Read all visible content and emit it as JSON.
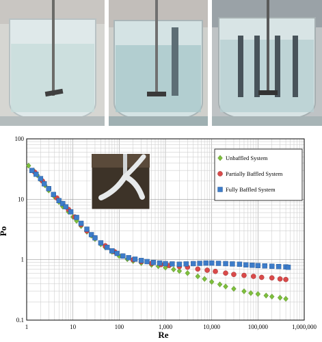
{
  "photos": [
    {
      "name": "unbaffled-tank-photo"
    },
    {
      "name": "partially-baffled-tank-photo"
    },
    {
      "name": "fully-baffled-tank-photo"
    }
  ],
  "inset_photo": {
    "name": "impeller-photo"
  },
  "chart_data": {
    "type": "scatter",
    "xlabel": "Re",
    "ylabel": "Po",
    "xscale": "log",
    "yscale": "log",
    "xlim": [
      1,
      1000000
    ],
    "ylim": [
      0.1,
      100
    ],
    "x_tick_labels": [
      "1",
      "10",
      "100",
      "1,000",
      "10,000",
      "100,000",
      "1,000,000"
    ],
    "y_tick_labels": [
      "0.1",
      "1",
      "10",
      "100"
    ],
    "grid": true,
    "legend_position": "top-right",
    "series": [
      {
        "name": "Unbaffled System",
        "color": "#7dbe3c",
        "marker": "diamond",
        "points": [
          [
            1.1,
            36
          ],
          [
            1.4,
            30
          ],
          [
            1.7,
            25
          ],
          [
            2,
            21
          ],
          [
            2.5,
            17
          ],
          [
            3,
            14
          ],
          [
            4,
            11
          ],
          [
            5,
            9
          ],
          [
            6,
            7.6
          ],
          [
            8,
            6.2
          ],
          [
            10,
            5.1
          ],
          [
            12,
            4.4
          ],
          [
            15,
            3.6
          ],
          [
            20,
            2.9
          ],
          [
            25,
            2.5
          ],
          [
            30,
            2.2
          ],
          [
            40,
            1.8
          ],
          [
            50,
            1.6
          ],
          [
            70,
            1.35
          ],
          [
            100,
            1.15
          ],
          [
            150,
            1.02
          ],
          [
            200,
            0.95
          ],
          [
            300,
            0.88
          ],
          [
            500,
            0.82
          ],
          [
            700,
            0.78
          ],
          [
            1000,
            0.74
          ],
          [
            1500,
            0.69
          ],
          [
            2000,
            0.65
          ],
          [
            3000,
            0.6
          ],
          [
            5000,
            0.53
          ],
          [
            7000,
            0.48
          ],
          [
            10000,
            0.43
          ],
          [
            15000,
            0.39
          ],
          [
            20000,
            0.36
          ],
          [
            30000,
            0.33
          ],
          [
            50000,
            0.3
          ],
          [
            70000,
            0.28
          ],
          [
            100000,
            0.27
          ],
          [
            150000,
            0.255
          ],
          [
            200000,
            0.245
          ],
          [
            300000,
            0.235
          ],
          [
            400000,
            0.225
          ]
        ]
      },
      {
        "name": "Partially Baffled System",
        "color": "#d94a4a",
        "marker": "circle",
        "points": [
          [
            1.5,
            28
          ],
          [
            2.2,
            20
          ],
          [
            3,
            15
          ],
          [
            4.5,
            10.5
          ],
          [
            6,
            8.5
          ],
          [
            8,
            6.8
          ],
          [
            11,
            5.1
          ],
          [
            15,
            3.8
          ],
          [
            20,
            3
          ],
          [
            30,
            2.3
          ],
          [
            50,
            1.7
          ],
          [
            80,
            1.35
          ],
          [
            120,
            1.15
          ],
          [
            200,
            1
          ],
          [
            300,
            0.93
          ],
          [
            500,
            0.87
          ],
          [
            800,
            0.83
          ],
          [
            1200,
            0.8
          ],
          [
            2000,
            0.77
          ],
          [
            3000,
            0.75
          ],
          [
            5000,
            0.7
          ],
          [
            8000,
            0.67
          ],
          [
            12000,
            0.64
          ],
          [
            20000,
            0.6
          ],
          [
            30000,
            0.57
          ],
          [
            50000,
            0.55
          ],
          [
            80000,
            0.53
          ],
          [
            120000,
            0.51
          ],
          [
            200000,
            0.5
          ],
          [
            300000,
            0.48
          ],
          [
            400000,
            0.47
          ]
        ]
      },
      {
        "name": "Fully Baffled System",
        "color": "#3d7cc9",
        "marker": "square",
        "points": [
          [
            1.3,
            30
          ],
          [
            1.6,
            26
          ],
          [
            2,
            22
          ],
          [
            2.4,
            18
          ],
          [
            3,
            15
          ],
          [
            3.8,
            12
          ],
          [
            5,
            9.5
          ],
          [
            6,
            8.5
          ],
          [
            7,
            7.5
          ],
          [
            9,
            6.2
          ],
          [
            12,
            5
          ],
          [
            15,
            4
          ],
          [
            20,
            3.2
          ],
          [
            25,
            2.6
          ],
          [
            30,
            2.3
          ],
          [
            40,
            1.9
          ],
          [
            55,
            1.6
          ],
          [
            70,
            1.4
          ],
          [
            90,
            1.27
          ],
          [
            120,
            1.15
          ],
          [
            160,
            1.08
          ],
          [
            220,
            1.02
          ],
          [
            300,
            0.97
          ],
          [
            400,
            0.93
          ],
          [
            550,
            0.9
          ],
          [
            750,
            0.88
          ],
          [
            1000,
            0.86
          ],
          [
            1400,
            0.85
          ],
          [
            2000,
            0.84
          ],
          [
            2800,
            0.85
          ],
          [
            4000,
            0.86
          ],
          [
            5500,
            0.87
          ],
          [
            7500,
            0.88
          ],
          [
            10000,
            0.88
          ],
          [
            14000,
            0.87
          ],
          [
            20000,
            0.86
          ],
          [
            28000,
            0.85
          ],
          [
            40000,
            0.84
          ],
          [
            55000,
            0.82
          ],
          [
            75000,
            0.81
          ],
          [
            100000,
            0.8
          ],
          [
            140000,
            0.79
          ],
          [
            200000,
            0.78
          ],
          [
            280000,
            0.77
          ],
          [
            400000,
            0.76
          ],
          [
            450000,
            0.75
          ]
        ]
      }
    ]
  }
}
